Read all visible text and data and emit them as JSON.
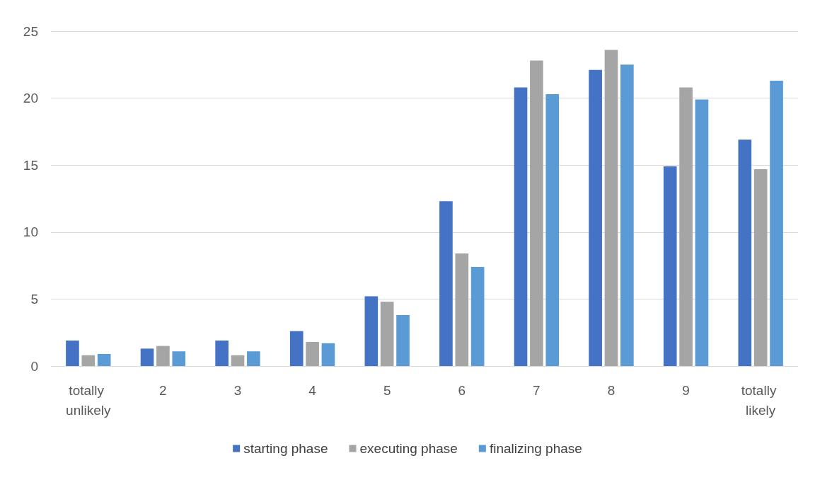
{
  "chart_data": {
    "type": "bar",
    "categories": [
      "totally unlikely",
      "2",
      "3",
      "4",
      "5",
      "6",
      "7",
      "8",
      "9",
      "totally likely"
    ],
    "series": [
      {
        "name": "starting phase",
        "color": "#4472c4",
        "values": [
          1.9,
          1.3,
          1.9,
          2.6,
          5.2,
          12.3,
          20.8,
          22.1,
          14.9,
          16.9
        ]
      },
      {
        "name": "executing phase",
        "color": "#a5a5a5",
        "values": [
          0.8,
          1.5,
          0.8,
          1.8,
          4.8,
          8.4,
          22.8,
          23.6,
          20.8,
          14.7
        ]
      },
      {
        "name": "finalizing phase",
        "color": "#5b9bd5",
        "values": [
          0.9,
          1.1,
          1.1,
          1.7,
          3.8,
          7.4,
          20.3,
          22.5,
          19.9,
          21.3
        ]
      }
    ],
    "ylim": [
      0,
      25
    ],
    "yticks": [
      0,
      5,
      10,
      15,
      20,
      25
    ],
    "grid": "y",
    "legend": "bottom"
  }
}
